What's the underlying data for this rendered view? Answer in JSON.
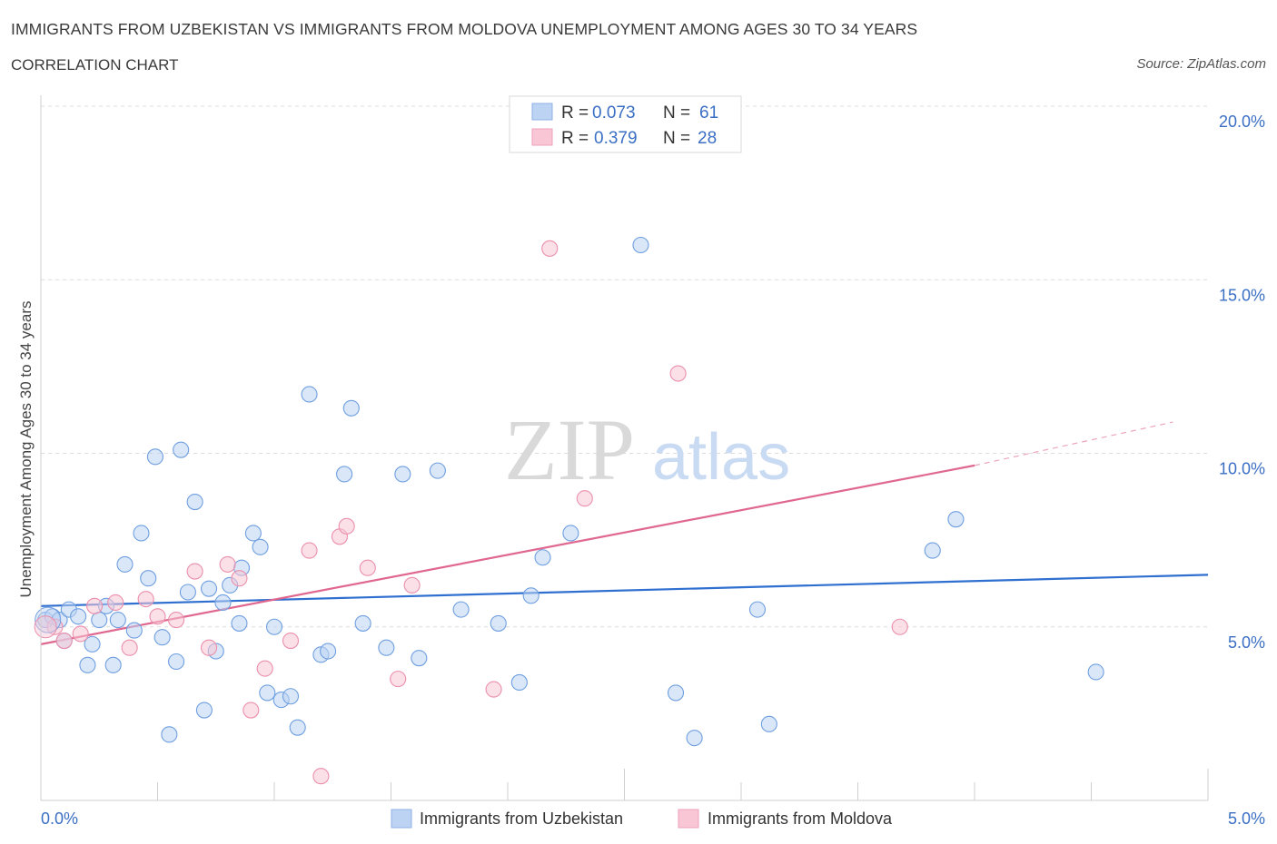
{
  "header": {
    "title": "IMMIGRANTS FROM UZBEKISTAN VS IMMIGRANTS FROM MOLDOVA UNEMPLOYMENT AMONG AGES 30 TO 34 YEARS",
    "subtitle": "CORRELATION CHART",
    "source": "Source: ZipAtlas.com"
  },
  "watermark": {
    "zip": "ZIP",
    "atlas": "atlas"
  },
  "legend": {
    "rows": [
      {
        "r_label": "R =",
        "r_value": "0.073",
        "n_label": "N =",
        "n_value": "61",
        "color": "#a7c4ef"
      },
      {
        "r_label": "R =",
        "r_value": "0.379",
        "n_label": "N =",
        "n_value": "28",
        "color": "#f6b8cb"
      }
    ]
  },
  "chart_data": {
    "type": "scatter",
    "ylabel": "Unemployment Among Ages 30 to 34 years",
    "xlim": [
      0,
      5
    ],
    "ylim": [
      0,
      20
    ],
    "x_ticks": [
      "0.0%",
      "5.0%"
    ],
    "y_ticks": [
      {
        "value": 5,
        "label": "5.0%"
      },
      {
        "value": 10,
        "label": "10.0%"
      },
      {
        "value": 15,
        "label": "15.0%"
      },
      {
        "value": 20,
        "label": "20.0%"
      }
    ],
    "grid": true,
    "legend_position": "top-center",
    "series": [
      {
        "name": "Immigrants from Uzbekistan",
        "color": "#6f9fe0",
        "fill": "#bcd3f3",
        "trend": {
          "x": [
            0,
            5
          ],
          "y": [
            5.6,
            6.5
          ],
          "color": "#2f6fd0"
        },
        "points": [
          [
            0.02,
            5.2
          ],
          [
            0.05,
            5.3
          ],
          [
            0.08,
            5.2
          ],
          [
            0.1,
            4.6
          ],
          [
            0.12,
            5.5
          ],
          [
            0.16,
            5.3
          ],
          [
            0.2,
            3.9
          ],
          [
            0.22,
            4.5
          ],
          [
            0.25,
            5.2
          ],
          [
            0.28,
            5.6
          ],
          [
            0.31,
            3.9
          ],
          [
            0.33,
            5.2
          ],
          [
            0.36,
            6.8
          ],
          [
            0.4,
            4.9
          ],
          [
            0.43,
            7.7
          ],
          [
            0.46,
            6.4
          ],
          [
            0.49,
            9.9
          ],
          [
            0.52,
            4.7
          ],
          [
            0.55,
            1.9
          ],
          [
            0.58,
            4.0
          ],
          [
            0.6,
            10.1
          ],
          [
            0.63,
            6.0
          ],
          [
            0.66,
            8.6
          ],
          [
            0.7,
            2.6
          ],
          [
            0.72,
            6.1
          ],
          [
            0.75,
            4.3
          ],
          [
            0.78,
            5.7
          ],
          [
            0.81,
            6.2
          ],
          [
            0.85,
            5.1
          ],
          [
            0.86,
            6.7
          ],
          [
            0.91,
            7.7
          ],
          [
            0.94,
            7.3
          ],
          [
            0.97,
            3.1
          ],
          [
            1.0,
            5.0
          ],
          [
            1.03,
            2.9
          ],
          [
            1.07,
            3.0
          ],
          [
            1.1,
            2.1
          ],
          [
            1.15,
            11.7
          ],
          [
            1.2,
            4.2
          ],
          [
            1.23,
            4.3
          ],
          [
            1.3,
            9.4
          ],
          [
            1.33,
            11.3
          ],
          [
            1.38,
            5.1
          ],
          [
            1.48,
            4.4
          ],
          [
            1.55,
            9.4
          ],
          [
            1.62,
            4.1
          ],
          [
            1.7,
            9.5
          ],
          [
            1.8,
            5.5
          ],
          [
            1.96,
            5.1
          ],
          [
            2.05,
            3.4
          ],
          [
            2.1,
            5.9
          ],
          [
            2.15,
            7.0
          ],
          [
            2.27,
            7.7
          ],
          [
            2.57,
            16.0
          ],
          [
            2.72,
            3.1
          ],
          [
            2.8,
            1.8
          ],
          [
            3.07,
            5.5
          ],
          [
            3.12,
            2.2
          ],
          [
            3.82,
            7.2
          ],
          [
            3.92,
            8.1
          ],
          [
            4.52,
            3.7
          ]
        ]
      },
      {
        "name": "Immigrants from Moldova",
        "color": "#eb8fac",
        "fill": "#f8c6d5",
        "trend": {
          "x": [
            0,
            4
          ],
          "y": [
            4.5,
            9.65
          ],
          "dash_x": [
            4,
            4.85
          ],
          "dash_y": [
            9.65,
            10.9
          ],
          "color": "#e0678f"
        },
        "points": [
          [
            0.06,
            5.0
          ],
          [
            0.1,
            4.6
          ],
          [
            0.17,
            4.8
          ],
          [
            0.23,
            5.6
          ],
          [
            0.32,
            5.7
          ],
          [
            0.38,
            4.4
          ],
          [
            0.45,
            5.8
          ],
          [
            0.5,
            5.3
          ],
          [
            0.58,
            5.2
          ],
          [
            0.66,
            6.6
          ],
          [
            0.72,
            4.4
          ],
          [
            0.8,
            6.8
          ],
          [
            0.85,
            6.4
          ],
          [
            0.9,
            2.6
          ],
          [
            0.96,
            3.8
          ],
          [
            1.07,
            4.6
          ],
          [
            1.15,
            7.2
          ],
          [
            1.2,
            0.7
          ],
          [
            1.28,
            7.6
          ],
          [
            1.31,
            7.9
          ],
          [
            1.4,
            6.7
          ],
          [
            1.53,
            3.5
          ],
          [
            1.59,
            6.2
          ],
          [
            1.94,
            3.2
          ],
          [
            2.18,
            15.9
          ],
          [
            2.33,
            8.7
          ],
          [
            2.73,
            12.3
          ],
          [
            3.68,
            5.0
          ]
        ]
      }
    ]
  }
}
